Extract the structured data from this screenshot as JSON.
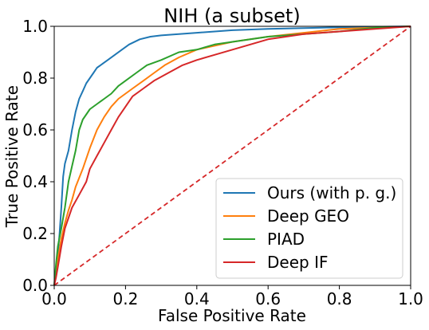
{
  "chart_data": {
    "type": "line",
    "title": "NIH (a subset)",
    "xlabel": "False Positive Rate",
    "ylabel": "True Positive Rate",
    "xlim": [
      0.0,
      1.0
    ],
    "ylim": [
      0.0,
      1.0
    ],
    "xticks": [
      "0.0",
      "0.2",
      "0.4",
      "0.6",
      "0.8",
      "1.0"
    ],
    "yticks": [
      "0.0",
      "0.2",
      "0.4",
      "0.6",
      "0.8",
      "1.0"
    ],
    "grid": false,
    "legend_position": "lower-right",
    "reference_line": {
      "color": "#d62728",
      "style": "dashed",
      "x": [
        0,
        1
      ],
      "y": [
        0,
        1
      ]
    },
    "series": [
      {
        "name": "Ours (with p. g.)",
        "color": "#1f77b4",
        "x": [
          0,
          0.005,
          0.01,
          0.015,
          0.02,
          0.025,
          0.03,
          0.04,
          0.05,
          0.06,
          0.07,
          0.08,
          0.09,
          0.1,
          0.11,
          0.12,
          0.13,
          0.15,
          0.17,
          0.19,
          0.21,
          0.24,
          0.27,
          0.3,
          0.35,
          0.4,
          0.5,
          0.6,
          0.7,
          0.8,
          0.9,
          1.0
        ],
        "y": [
          0,
          0.05,
          0.12,
          0.2,
          0.3,
          0.42,
          0.47,
          0.52,
          0.6,
          0.67,
          0.72,
          0.75,
          0.78,
          0.8,
          0.82,
          0.84,
          0.85,
          0.87,
          0.89,
          0.91,
          0.93,
          0.95,
          0.96,
          0.965,
          0.97,
          0.975,
          0.985,
          0.99,
          0.993,
          0.996,
          0.998,
          1.0
        ]
      },
      {
        "name": "Deep GEO",
        "color": "#ff7f0e",
        "x": [
          0,
          0.005,
          0.01,
          0.02,
          0.03,
          0.04,
          0.05,
          0.06,
          0.08,
          0.1,
          0.12,
          0.14,
          0.16,
          0.18,
          0.2,
          0.22,
          0.25,
          0.28,
          0.31,
          0.35,
          0.4,
          0.45,
          0.5,
          0.55,
          0.6,
          0.7,
          0.8,
          0.9,
          1.0
        ],
        "y": [
          0,
          0.04,
          0.1,
          0.18,
          0.24,
          0.29,
          0.33,
          0.38,
          0.45,
          0.53,
          0.6,
          0.65,
          0.69,
          0.72,
          0.74,
          0.76,
          0.79,
          0.82,
          0.85,
          0.88,
          0.91,
          0.925,
          0.94,
          0.95,
          0.96,
          0.975,
          0.99,
          0.995,
          1.0
        ]
      },
      {
        "name": "PIAD",
        "color": "#2ca02c",
        "x": [
          0,
          0.005,
          0.01,
          0.02,
          0.03,
          0.04,
          0.05,
          0.06,
          0.07,
          0.08,
          0.1,
          0.12,
          0.14,
          0.16,
          0.18,
          0.2,
          0.23,
          0.26,
          0.3,
          0.35,
          0.4,
          0.45,
          0.5,
          0.55,
          0.6,
          0.7,
          0.8,
          0.9,
          1.0
        ],
        "y": [
          0,
          0.08,
          0.15,
          0.22,
          0.3,
          0.4,
          0.46,
          0.52,
          0.6,
          0.64,
          0.68,
          0.7,
          0.72,
          0.74,
          0.77,
          0.79,
          0.82,
          0.85,
          0.87,
          0.9,
          0.91,
          0.93,
          0.94,
          0.95,
          0.96,
          0.97,
          0.98,
          0.995,
          1.0
        ]
      },
      {
        "name": "Deep IF",
        "color": "#d62728",
        "x": [
          0,
          0.005,
          0.01,
          0.02,
          0.03,
          0.05,
          0.07,
          0.09,
          0.1,
          0.12,
          0.14,
          0.16,
          0.18,
          0.2,
          0.22,
          0.25,
          0.28,
          0.32,
          0.36,
          0.4,
          0.45,
          0.5,
          0.55,
          0.6,
          0.65,
          0.7,
          0.8,
          0.9,
          1.0
        ],
        "y": [
          0,
          0.03,
          0.07,
          0.15,
          0.22,
          0.3,
          0.35,
          0.4,
          0.45,
          0.5,
          0.55,
          0.6,
          0.65,
          0.69,
          0.73,
          0.76,
          0.79,
          0.82,
          0.85,
          0.87,
          0.89,
          0.91,
          0.93,
          0.95,
          0.96,
          0.97,
          0.98,
          0.99,
          1.0
        ]
      }
    ]
  }
}
